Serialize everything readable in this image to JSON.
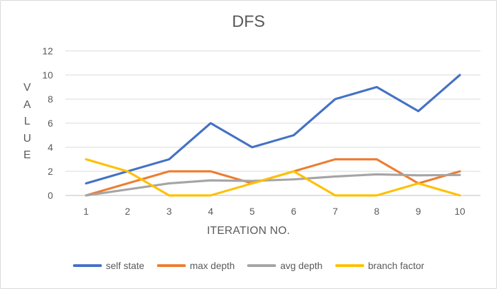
{
  "chart_data": {
    "type": "line",
    "title": "DFS",
    "xlabel": "ITERATION NO.",
    "ylabel": "V\nA\nL\nU\nE",
    "x": [
      1,
      2,
      3,
      4,
      5,
      6,
      7,
      8,
      9,
      10
    ],
    "xtick_labels": [
      "1",
      "2",
      "3",
      "4",
      "5",
      "6",
      "7",
      "8",
      "9",
      "10"
    ],
    "ylim": [
      0,
      12
    ],
    "yticks": [
      0,
      2,
      4,
      6,
      8,
      10,
      12
    ],
    "ytick_labels": [
      "0",
      "2",
      "4",
      "6",
      "8",
      "10",
      "12"
    ],
    "grid": true,
    "legend_position": "bottom",
    "series": [
      {
        "name": "self state",
        "color": "#4472C4",
        "values": [
          1,
          2,
          3,
          6,
          4,
          5,
          8,
          9,
          7,
          10
        ]
      },
      {
        "name": "max depth",
        "color": "#ED7D31",
        "values": [
          0,
          1,
          2,
          2,
          1,
          2,
          3,
          3,
          1,
          2
        ]
      },
      {
        "name": "avg depth",
        "color": "#A5A5A5",
        "values": [
          0,
          0.5,
          1,
          1.25,
          1.2,
          1.33,
          1.57,
          1.75,
          1.67,
          1.7
        ]
      },
      {
        "name": "branch factor",
        "color": "#FFC000",
        "values": [
          3,
          2,
          0,
          0,
          1,
          2,
          0,
          0,
          1,
          0
        ]
      }
    ]
  }
}
